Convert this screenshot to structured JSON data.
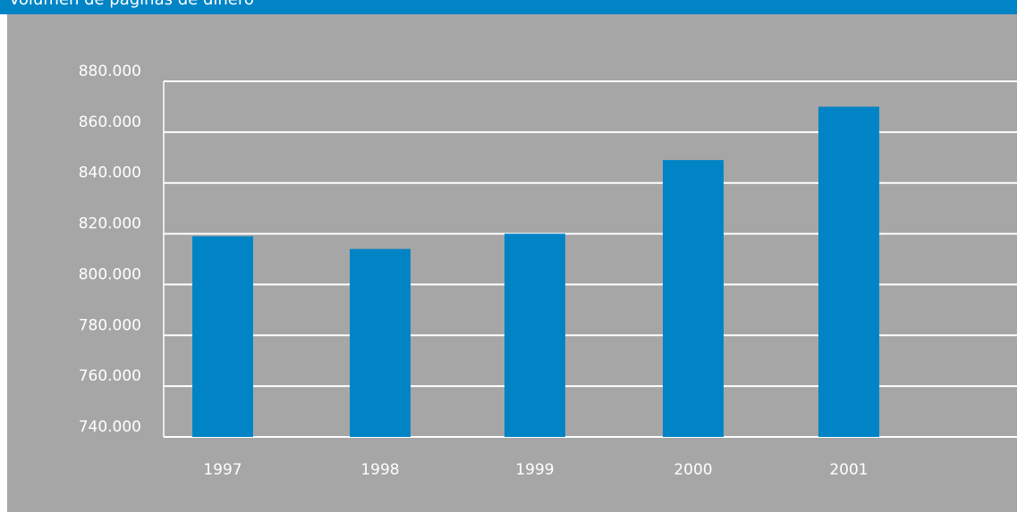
{
  "header": {
    "title": "Volumen de paginas de dinero"
  },
  "colors": {
    "accent": "#0084c6",
    "background": "#a6a6a6",
    "gridline": "#ffffff",
    "text": "#ffffff"
  },
  "chart_data": {
    "type": "bar",
    "categories": [
      "1997",
      "1998",
      "1999",
      "2000",
      "2001"
    ],
    "values": [
      819000,
      814000,
      820000,
      849000,
      870000
    ],
    "ylim": [
      740000,
      880000
    ],
    "yticks": [
      740000,
      760000,
      780000,
      800000,
      820000,
      840000,
      860000,
      880000
    ],
    "ytick_labels": [
      "740.000",
      "760.000",
      "780.000",
      "800.000",
      "820.000",
      "840.000",
      "860.000",
      "880.000"
    ],
    "grid": true,
    "title": "",
    "xlabel": "",
    "ylabel": ""
  }
}
